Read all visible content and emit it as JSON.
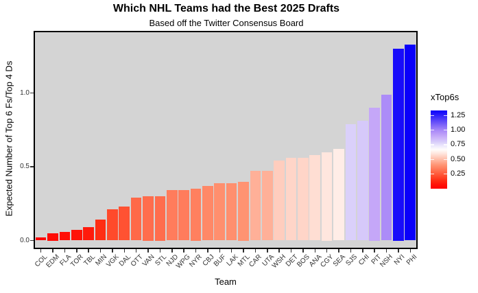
{
  "chart_data": {
    "type": "bar",
    "title": "Which NHL Teams had the Best 2025 Drafts",
    "subtitle": "Based off the Twitter Consensus Board",
    "xlabel": "Team",
    "ylabel": "Expected Number of Top 6 Fs/Top 4 Ds",
    "categories": [
      "COL",
      "EDM",
      "FLA",
      "TOR",
      "TBL",
      "MIN",
      "VGK",
      "DAL",
      "OTT",
      "VAN",
      "STL",
      "NJD",
      "WPG",
      "NYR",
      "CBJ",
      "BUF",
      "LAK",
      "MTL",
      "CAR",
      "UTA",
      "WSH",
      "DET",
      "BOS",
      "ANA",
      "CGY",
      "SEA",
      "SJS",
      "CHI",
      "PIT",
      "NSH",
      "NYI",
      "PHI"
    ],
    "values": [
      0.02,
      0.05,
      0.06,
      0.07,
      0.09,
      0.14,
      0.21,
      0.23,
      0.29,
      0.3,
      0.3,
      0.34,
      0.34,
      0.35,
      0.37,
      0.39,
      0.39,
      0.4,
      0.47,
      0.47,
      0.54,
      0.56,
      0.56,
      0.58,
      0.6,
      0.62,
      0.79,
      0.81,
      0.9,
      0.99,
      1.3,
      1.33
    ],
    "ylim": [
      -0.05,
      1.41
    ],
    "yticks": [
      0.0,
      0.5,
      1.0
    ],
    "grid": false,
    "panel_background": "#d4d4d4",
    "bar_width_fraction": 0.9,
    "legend": {
      "title": "xTop6s",
      "position": "right",
      "ticks": [
        1.25,
        1.0,
        0.75,
        0.5,
        0.25
      ],
      "scale_top": 1.335,
      "scale_bottom": 0,
      "low_color": "#ff0000",
      "mid_color": "#ffffff",
      "high_color": "#0a00fa",
      "midpoint": 0.675
    },
    "colormap": {
      "min": 0.02,
      "mid": 0.675,
      "max": 1.33,
      "red_side": [
        [
          0,
          [
            255,
            255,
            255
          ]
        ],
        [
          0.1,
          [
            255,
            234,
            227
          ]
        ],
        [
          0.42,
          [
            255,
            147,
            114
          ]
        ],
        [
          0.71,
          [
            255,
            74,
            43
          ]
        ],
        [
          0.82,
          [
            255,
            44,
            18
          ]
        ],
        [
          1,
          [
            255,
            0,
            0
          ]
        ]
      ],
      "blue_side": [
        [
          0,
          [
            255,
            255,
            255
          ]
        ],
        [
          0.18,
          [
            217,
            207,
            250
          ]
        ],
        [
          0.35,
          [
            196,
            165,
            248
          ]
        ],
        [
          0.48,
          [
            172,
            140,
            248
          ]
        ],
        [
          1,
          [
            10,
            0,
            250
          ]
        ]
      ]
    }
  }
}
